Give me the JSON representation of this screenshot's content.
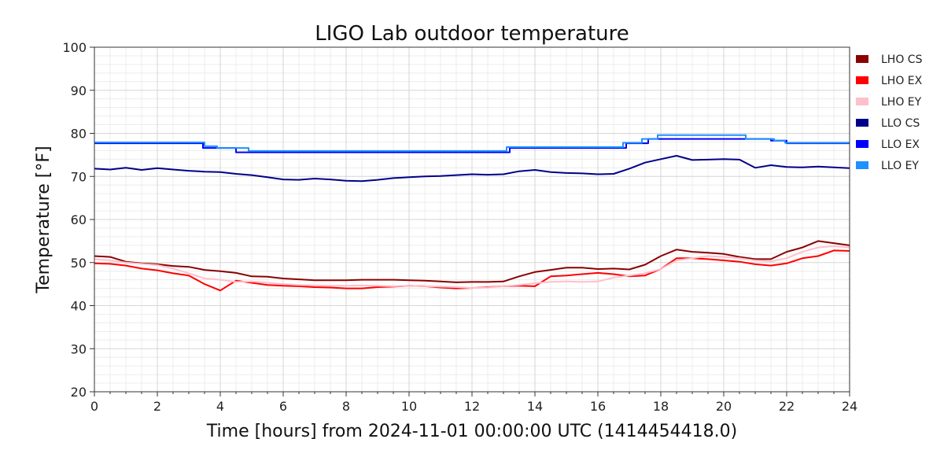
{
  "chart_data": {
    "type": "line",
    "title": "LIGO Lab outdoor temperature",
    "xlabel": "Time [hours] from 2024-11-01 00:00:00 UTC (1414454418.0)",
    "ylabel": "Temperature [°F]",
    "xlim": [
      0,
      24
    ],
    "ylim": [
      20,
      100
    ],
    "xticks": [
      0,
      2,
      4,
      6,
      8,
      10,
      12,
      14,
      16,
      18,
      20,
      22,
      24
    ],
    "yticks": [
      20,
      30,
      40,
      50,
      60,
      70,
      80,
      90,
      100
    ],
    "grid": true,
    "legend_position": "right-outside",
    "series": [
      {
        "name": "LHO CS",
        "color": "#8b0000",
        "x": [
          0,
          0.5,
          1,
          1.5,
          2,
          2.5,
          3,
          3.5,
          4,
          4.5,
          5,
          5.5,
          6,
          6.5,
          7,
          7.5,
          8,
          8.5,
          9,
          9.5,
          10,
          10.5,
          11,
          11.5,
          12,
          12.5,
          13,
          13.5,
          14,
          14.5,
          15,
          15.5,
          16,
          16.5,
          17,
          17.5,
          18,
          18.5,
          19,
          19.5,
          20,
          20.5,
          21,
          21.5,
          22,
          22.5,
          23,
          23.5,
          24
        ],
        "y": [
          51.5,
          51.3,
          50.2,
          49.8,
          49.6,
          49.2,
          49.0,
          48.3,
          48.0,
          47.6,
          46.8,
          46.7,
          46.3,
          46.1,
          45.9,
          45.9,
          45.9,
          46.0,
          46.0,
          46.0,
          45.9,
          45.8,
          45.6,
          45.4,
          45.5,
          45.5,
          45.6,
          46.8,
          47.8,
          48.3,
          48.8,
          48.8,
          48.5,
          48.6,
          48.4,
          49.5,
          51.5,
          53.0,
          52.5,
          52.3,
          52.0,
          51.3,
          50.8,
          50.8,
          52.5,
          53.5,
          55.0,
          54.5,
          54.0
        ]
      },
      {
        "name": "LHO EX",
        "color": "#ff0000",
        "x": [
          0,
          0.5,
          1,
          1.5,
          2,
          2.5,
          3,
          3.5,
          4,
          4.5,
          5,
          5.5,
          6,
          6.5,
          7,
          7.5,
          8,
          8.5,
          9,
          9.5,
          10,
          10.5,
          11,
          11.5,
          12,
          12.5,
          13,
          13.5,
          14,
          14.5,
          15,
          15.5,
          16,
          16.5,
          17,
          17.5,
          18,
          18.5,
          19,
          19.5,
          20,
          20.5,
          21,
          21.5,
          22,
          22.5,
          23,
          23.5,
          24
        ],
        "y": [
          49.8,
          49.7,
          49.3,
          48.6,
          48.2,
          47.5,
          47.0,
          45.0,
          43.5,
          45.8,
          45.3,
          44.8,
          44.6,
          44.5,
          44.3,
          44.2,
          44.0,
          44.0,
          44.3,
          44.4,
          44.6,
          44.5,
          44.2,
          44.0,
          44.1,
          44.3,
          44.5,
          44.6,
          44.5,
          46.8,
          47.0,
          47.3,
          47.6,
          47.3,
          46.8,
          47.0,
          48.5,
          51.0,
          51.0,
          50.8,
          50.5,
          50.2,
          49.6,
          49.3,
          49.8,
          51.0,
          51.5,
          52.8,
          52.7
        ]
      },
      {
        "name": "LHO EY",
        "color": "#ffc0cb",
        "x": [
          0,
          0.5,
          1,
          1.5,
          2,
          2.5,
          3,
          3.5,
          4,
          4.5,
          5,
          5.5,
          6,
          6.5,
          7,
          7.5,
          8,
          8.5,
          9,
          9.5,
          10,
          10.5,
          11,
          11.5,
          12,
          12.5,
          13,
          13.5,
          14,
          14.5,
          15,
          15.5,
          16,
          16.5,
          17,
          17.5,
          18,
          18.5,
          19,
          19.5,
          20,
          20.5,
          21,
          21.5,
          22,
          22.5,
          23,
          23.5,
          24
        ],
        "y": [
          50.8,
          50.5,
          50.0,
          49.7,
          49.4,
          48.6,
          47.5,
          46.3,
          46.0,
          45.5,
          45.6,
          45.3,
          45.0,
          44.8,
          44.7,
          44.6,
          44.6,
          44.7,
          44.6,
          44.5,
          44.6,
          44.5,
          44.4,
          44.3,
          44.1,
          44.2,
          44.5,
          44.8,
          45.2,
          45.5,
          45.6,
          45.5,
          45.6,
          46.5,
          47.0,
          47.5,
          48.5,
          50.5,
          51.0,
          51.5,
          51.3,
          51.0,
          50.5,
          50.3,
          51.0,
          52.5,
          53.5,
          53.8,
          53.5
        ]
      },
      {
        "name": "LLO CS",
        "color": "#00008b",
        "x": [
          0,
          0.5,
          1,
          1.5,
          2,
          2.5,
          3,
          3.5,
          4,
          4.5,
          5,
          5.5,
          6,
          6.5,
          7,
          7.5,
          8,
          8.5,
          9,
          9.5,
          10,
          10.5,
          11,
          11.5,
          12,
          12.5,
          13,
          13.5,
          14,
          14.5,
          15,
          15.5,
          16,
          16.5,
          17,
          17.5,
          18,
          18.5,
          19,
          19.5,
          20,
          20.5,
          21,
          21.5,
          22,
          22.5,
          23,
          23.5,
          24
        ],
        "y": [
          71.8,
          71.6,
          72.0,
          71.5,
          71.9,
          71.6,
          71.3,
          71.1,
          71.0,
          70.6,
          70.3,
          69.8,
          69.3,
          69.2,
          69.5,
          69.3,
          69.0,
          68.9,
          69.2,
          69.6,
          69.8,
          70.0,
          70.1,
          70.3,
          70.5,
          70.4,
          70.5,
          71.2,
          71.5,
          71.0,
          70.8,
          70.7,
          70.5,
          70.6,
          71.8,
          73.2,
          74.0,
          74.8,
          73.8,
          73.9,
          74.0,
          73.9,
          72.0,
          72.6,
          72.2,
          72.1,
          72.3,
          72.1,
          71.9
        ]
      },
      {
        "name": "LLO EX",
        "color": "#0000ff",
        "x": [
          0,
          3.45,
          3.45,
          4.5,
          4.5,
          13.2,
          13.2,
          16.9,
          16.9,
          17.6,
          17.6,
          20.8,
          20.8,
          21.5,
          21.5,
          22.0,
          22.0,
          24
        ],
        "y": [
          77.7,
          77.7,
          76.6,
          76.6,
          75.6,
          75.6,
          76.6,
          76.6,
          77.7,
          77.7,
          78.7,
          78.7,
          78.7,
          78.7,
          78.3,
          78.3,
          77.7,
          77.7
        ]
      },
      {
        "name": "LLO EY",
        "color": "#1e90ff",
        "x": [
          0,
          3.5,
          3.5,
          3.9,
          3.9,
          4.9,
          4.9,
          13.1,
          13.1,
          16.8,
          16.8,
          17.4,
          17.4,
          17.9,
          17.9,
          20.7,
          20.7,
          21.6,
          21.6,
          21.95,
          21.95,
          24
        ],
        "y": [
          77.9,
          77.9,
          77.0,
          77.0,
          76.6,
          76.6,
          75.9,
          75.9,
          76.8,
          76.8,
          77.8,
          77.8,
          78.7,
          78.7,
          79.6,
          79.6,
          78.7,
          78.7,
          78.3,
          78.3,
          77.8,
          77.8
        ]
      }
    ]
  }
}
